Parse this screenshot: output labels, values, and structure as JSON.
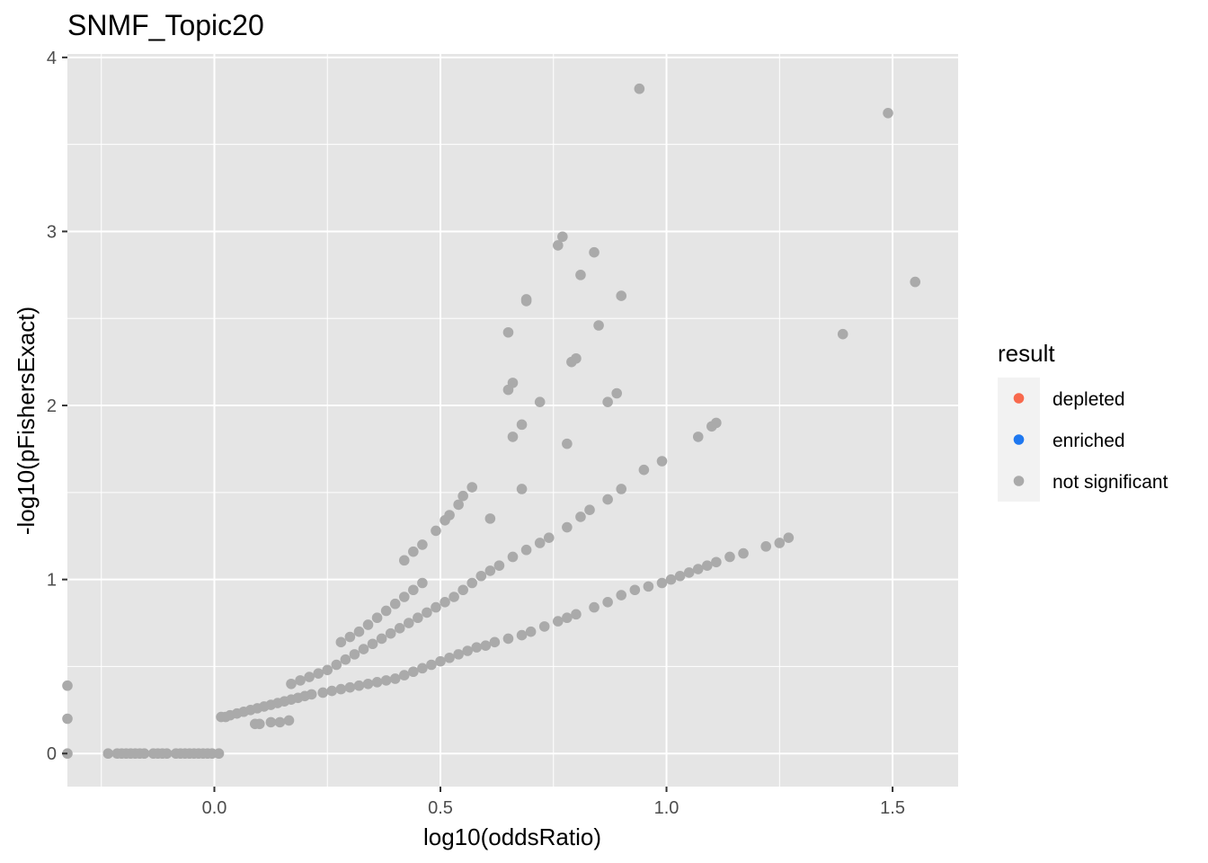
{
  "chart_data": {
    "type": "scatter",
    "title": "SNMF_Topic20",
    "xlabel": "log10(oddsRatio)",
    "ylabel": "-log10(pFishersExact)",
    "xlim": [
      -0.325,
      1.645
    ],
    "ylim": [
      -0.19,
      4.02
    ],
    "x_ticks": [
      0.0,
      0.5,
      1.0,
      1.5
    ],
    "x_tick_labels": [
      "0.0",
      "0.5",
      "1.0",
      "1.5"
    ],
    "y_ticks": [
      0,
      1,
      2,
      3,
      4
    ],
    "y_tick_labels": [
      "0",
      "1",
      "2",
      "3",
      "4"
    ],
    "grid": true,
    "panel_background": "#e5e5e5",
    "grid_color": "#ffffff",
    "legend": {
      "title": "result",
      "placement": "right",
      "entries": [
        {
          "label": "depleted",
          "color": "#f8694d"
        },
        {
          "label": "enriched",
          "color": "#1f78f0"
        },
        {
          "label": "not significant",
          "color": "#aaaaaa"
        }
      ]
    },
    "series": [
      {
        "name": "not significant",
        "color": "#aaaaaa",
        "points": [
          [
            -0.325,
            0.39
          ],
          [
            -0.325,
            0.2
          ],
          [
            -0.325,
            0.0
          ],
          [
            -0.235,
            0.0
          ],
          [
            -0.215,
            0.0
          ],
          [
            -0.205,
            0.0
          ],
          [
            -0.195,
            0.0
          ],
          [
            -0.185,
            0.0
          ],
          [
            -0.175,
            0.0
          ],
          [
            -0.165,
            0.0
          ],
          [
            -0.155,
            0.0
          ],
          [
            -0.135,
            0.0
          ],
          [
            -0.125,
            0.0
          ],
          [
            -0.115,
            0.0
          ],
          [
            -0.105,
            0.0
          ],
          [
            -0.085,
            0.0
          ],
          [
            -0.075,
            0.0
          ],
          [
            -0.065,
            0.0
          ],
          [
            -0.055,
            0.0
          ],
          [
            -0.045,
            0.0
          ],
          [
            -0.035,
            0.0
          ],
          [
            -0.025,
            0.0
          ],
          [
            -0.015,
            0.0
          ],
          [
            -0.005,
            0.0
          ],
          [
            0.01,
            0.0
          ],
          [
            0.015,
            0.21
          ],
          [
            0.025,
            0.21
          ],
          [
            0.035,
            0.22
          ],
          [
            0.05,
            0.23
          ],
          [
            0.065,
            0.24
          ],
          [
            0.08,
            0.25
          ],
          [
            0.095,
            0.26
          ],
          [
            0.11,
            0.27
          ],
          [
            0.125,
            0.28
          ],
          [
            0.14,
            0.29
          ],
          [
            0.155,
            0.3
          ],
          [
            0.17,
            0.31
          ],
          [
            0.185,
            0.32
          ],
          [
            0.2,
            0.33
          ],
          [
            0.215,
            0.34
          ],
          [
            0.09,
            0.17
          ],
          [
            0.1,
            0.17
          ],
          [
            0.125,
            0.18
          ],
          [
            0.145,
            0.18
          ],
          [
            0.165,
            0.19
          ],
          [
            0.24,
            0.35
          ],
          [
            0.26,
            0.36
          ],
          [
            0.28,
            0.37
          ],
          [
            0.3,
            0.38
          ],
          [
            0.32,
            0.39
          ],
          [
            0.34,
            0.4
          ],
          [
            0.36,
            0.41
          ],
          [
            0.38,
            0.42
          ],
          [
            0.4,
            0.43
          ],
          [
            0.42,
            0.45
          ],
          [
            0.44,
            0.47
          ],
          [
            0.46,
            0.49
          ],
          [
            0.48,
            0.51
          ],
          [
            0.5,
            0.53
          ],
          [
            0.52,
            0.55
          ],
          [
            0.54,
            0.57
          ],
          [
            0.56,
            0.59
          ],
          [
            0.58,
            0.61
          ],
          [
            0.6,
            0.62
          ],
          [
            0.62,
            0.64
          ],
          [
            0.65,
            0.66
          ],
          [
            0.68,
            0.68
          ],
          [
            0.7,
            0.7
          ],
          [
            0.73,
            0.73
          ],
          [
            0.76,
            0.76
          ],
          [
            0.78,
            0.78
          ],
          [
            0.8,
            0.8
          ],
          [
            0.84,
            0.84
          ],
          [
            0.87,
            0.87
          ],
          [
            0.9,
            0.91
          ],
          [
            0.93,
            0.94
          ],
          [
            0.96,
            0.96
          ],
          [
            0.99,
            0.98
          ],
          [
            1.01,
            1.0
          ],
          [
            1.03,
            1.02
          ],
          [
            1.05,
            1.04
          ],
          [
            1.07,
            1.06
          ],
          [
            1.09,
            1.08
          ],
          [
            1.11,
            1.1
          ],
          [
            1.14,
            1.13
          ],
          [
            1.17,
            1.15
          ],
          [
            1.22,
            1.19
          ],
          [
            1.25,
            1.21
          ],
          [
            1.27,
            1.24
          ],
          [
            0.17,
            0.4
          ],
          [
            0.19,
            0.42
          ],
          [
            0.21,
            0.44
          ],
          [
            0.23,
            0.46
          ],
          [
            0.25,
            0.48
          ],
          [
            0.27,
            0.51
          ],
          [
            0.29,
            0.54
          ],
          [
            0.31,
            0.57
          ],
          [
            0.33,
            0.6
          ],
          [
            0.35,
            0.63
          ],
          [
            0.37,
            0.66
          ],
          [
            0.39,
            0.69
          ],
          [
            0.41,
            0.72
          ],
          [
            0.43,
            0.75
          ],
          [
            0.45,
            0.78
          ],
          [
            0.47,
            0.81
          ],
          [
            0.49,
            0.84
          ],
          [
            0.51,
            0.87
          ],
          [
            0.53,
            0.9
          ],
          [
            0.55,
            0.94
          ],
          [
            0.57,
            0.98
          ],
          [
            0.59,
            1.02
          ],
          [
            0.61,
            1.05
          ],
          [
            0.63,
            1.08
          ],
          [
            0.66,
            1.13
          ],
          [
            0.69,
            1.17
          ],
          [
            0.72,
            1.21
          ],
          [
            0.74,
            1.24
          ],
          [
            0.78,
            1.3
          ],
          [
            0.81,
            1.36
          ],
          [
            0.83,
            1.4
          ],
          [
            0.87,
            1.46
          ],
          [
            0.9,
            1.52
          ],
          [
            0.95,
            1.63
          ],
          [
            0.99,
            1.68
          ],
          [
            1.07,
            1.82
          ],
          [
            1.1,
            1.88
          ],
          [
            1.11,
            1.9
          ],
          [
            0.28,
            0.64
          ],
          [
            0.3,
            0.67
          ],
          [
            0.32,
            0.7
          ],
          [
            0.34,
            0.74
          ],
          [
            0.36,
            0.78
          ],
          [
            0.38,
            0.82
          ],
          [
            0.4,
            0.86
          ],
          [
            0.42,
            0.9
          ],
          [
            0.44,
            0.94
          ],
          [
            0.46,
            0.98
          ],
          [
            0.42,
            1.11
          ],
          [
            0.44,
            1.16
          ],
          [
            0.46,
            1.2
          ],
          [
            0.49,
            1.28
          ],
          [
            0.51,
            1.34
          ],
          [
            0.52,
            1.37
          ],
          [
            0.54,
            1.43
          ],
          [
            0.55,
            1.48
          ],
          [
            0.57,
            1.53
          ],
          [
            0.61,
            1.35
          ],
          [
            0.65,
            2.09
          ],
          [
            0.66,
            2.13
          ],
          [
            0.65,
            2.42
          ],
          [
            0.66,
            1.82
          ],
          [
            0.68,
            1.89
          ],
          [
            0.69,
            2.6
          ],
          [
            0.69,
            2.61
          ],
          [
            0.72,
            2.02
          ],
          [
            0.68,
            1.52
          ],
          [
            0.76,
            2.92
          ],
          [
            0.77,
            2.97
          ],
          [
            0.78,
            1.78
          ],
          [
            0.79,
            2.25
          ],
          [
            0.8,
            2.27
          ],
          [
            0.81,
            2.75
          ],
          [
            0.84,
            2.88
          ],
          [
            0.85,
            2.46
          ],
          [
            0.87,
            2.02
          ],
          [
            0.89,
            2.07
          ],
          [
            0.9,
            2.63
          ],
          [
            0.94,
            3.82
          ],
          [
            1.39,
            2.41
          ],
          [
            1.49,
            3.68
          ],
          [
            1.55,
            2.71
          ]
        ]
      }
    ]
  }
}
